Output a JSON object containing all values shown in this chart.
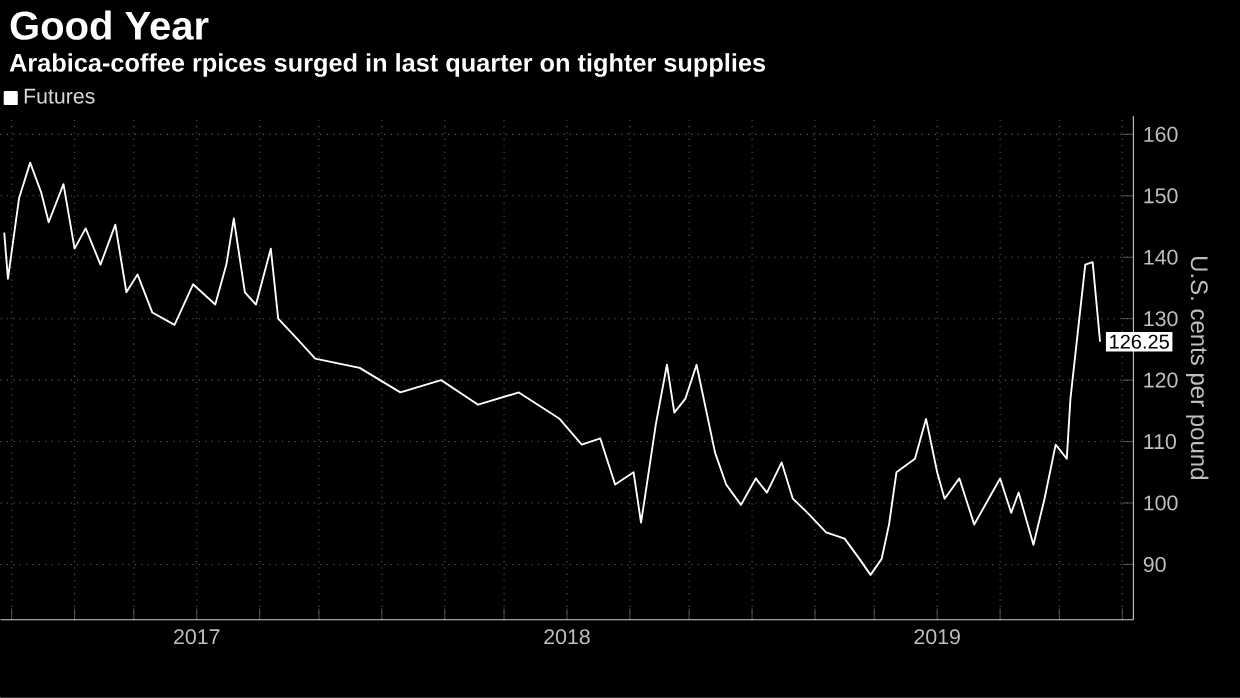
{
  "chart_data": {
    "type": "line",
    "title": "Good Year",
    "subtitle": "Arabica-coffee rpices surged in last quarter on tighter supplies",
    "ylabel": "U.S. cents per pound",
    "x": [
      2016.98,
      2016.99,
      2017.02,
      2017.05,
      2017.08,
      2017.1,
      2017.14,
      2017.17,
      2017.2,
      2017.24,
      2017.28,
      2017.31,
      2017.34,
      2017.38,
      2017.44,
      2017.49,
      2017.55,
      2017.58,
      2017.6,
      2017.63,
      2017.66,
      2017.7,
      2017.72,
      2017.77,
      2017.82,
      2017.94,
      2018.05,
      2018.16,
      2018.26,
      2018.37,
      2018.48,
      2018.54,
      2018.59,
      2018.63,
      2018.68,
      2018.7,
      2018.71,
      2018.74,
      2018.77,
      2018.79,
      2018.82,
      2018.85,
      2018.9,
      2018.93,
      2018.97,
      2019.01,
      2019.04,
      2019.08,
      2019.11,
      2019.15,
      2019.2,
      2019.25,
      2019.29,
      2019.32,
      2019.35,
      2019.37,
      2019.39,
      2019.44,
      2019.47,
      2019.5,
      2019.52,
      2019.56,
      2019.6,
      2019.63,
      2019.67,
      2019.7,
      2019.72,
      2019.76,
      2019.79,
      2019.82,
      2019.85,
      2019.86,
      2019.9,
      2019.92,
      2019.94
    ],
    "series": [
      {
        "name": "Futures",
        "color": "#ffffff",
        "values": [
          144,
          136.5,
          149.6,
          155.4,
          150.5,
          145.7,
          151.9,
          141.4,
          144.7,
          138.8,
          145.3,
          134.3,
          137.2,
          131,
          129,
          135.6,
          132.3,
          138.8,
          146.3,
          134.3,
          132.3,
          141.4,
          130,
          126.8,
          123.5,
          122,
          118,
          120,
          116,
          118,
          113.7,
          109.5,
          110.5,
          103,
          105,
          96.8,
          100.7,
          112.8,
          122.5,
          114.7,
          117,
          122.5,
          108.2,
          103,
          99.7,
          104,
          101.7,
          106.6,
          100.7,
          98.4,
          95.2,
          94.2,
          90.9,
          88.3,
          90.9,
          96.5,
          105,
          107.2,
          113.7,
          105,
          100.7,
          104,
          96.5,
          99.7,
          104,
          98.4,
          101.7,
          93.2,
          100.7,
          109.5,
          107.2,
          117,
          138.8,
          139.2,
          126.25
        ],
        "value_labels": [
          null,
          null,
          null,
          null,
          null,
          null,
          null,
          null,
          null,
          null,
          null,
          null,
          null,
          null,
          null,
          null,
          null,
          null,
          null,
          null,
          null,
          null,
          null,
          null,
          null,
          null,
          null,
          null,
          null,
          null,
          null,
          null,
          null,
          null,
          null,
          null,
          null,
          null,
          null,
          null,
          null,
          null,
          null,
          null,
          null,
          null,
          null,
          null,
          null,
          null,
          null,
          null,
          null,
          null,
          null,
          null,
          null,
          null,
          null,
          null,
          null,
          null,
          null,
          null,
          null,
          null,
          null,
          null,
          null,
          null,
          null,
          null,
          null,
          null,
          "126.25"
        ]
      }
    ],
    "xlim": [
      2016.97,
      2020.03
    ],
    "ylim": [
      81,
      163
    ],
    "xticks": [
      {
        "value": 2017,
        "label": null
      },
      {
        "value": 2017.17,
        "label": null
      },
      {
        "value": 2017.33,
        "label": null
      },
      {
        "value": 2017.5,
        "label": "2017"
      },
      {
        "value": 2017.67,
        "label": null
      },
      {
        "value": 2017.83,
        "label": null
      },
      {
        "value": 2018,
        "label": null
      },
      {
        "value": 2018.17,
        "label": null
      },
      {
        "value": 2018.33,
        "label": null
      },
      {
        "value": 2018.5,
        "label": "2018"
      },
      {
        "value": 2018.67,
        "label": null
      },
      {
        "value": 2018.83,
        "label": null
      },
      {
        "value": 2019,
        "label": null
      },
      {
        "value": 2019.17,
        "label": null
      },
      {
        "value": 2019.33,
        "label": null
      },
      {
        "value": 2019.5,
        "label": "2019"
      },
      {
        "value": 2019.67,
        "label": null
      },
      {
        "value": 2019.83,
        "label": null
      },
      {
        "value": 2020,
        "label": null
      }
    ],
    "yticks": [
      90,
      100,
      110,
      120,
      130,
      140,
      150,
      160
    ],
    "grid": true,
    "legend": "top left"
  }
}
